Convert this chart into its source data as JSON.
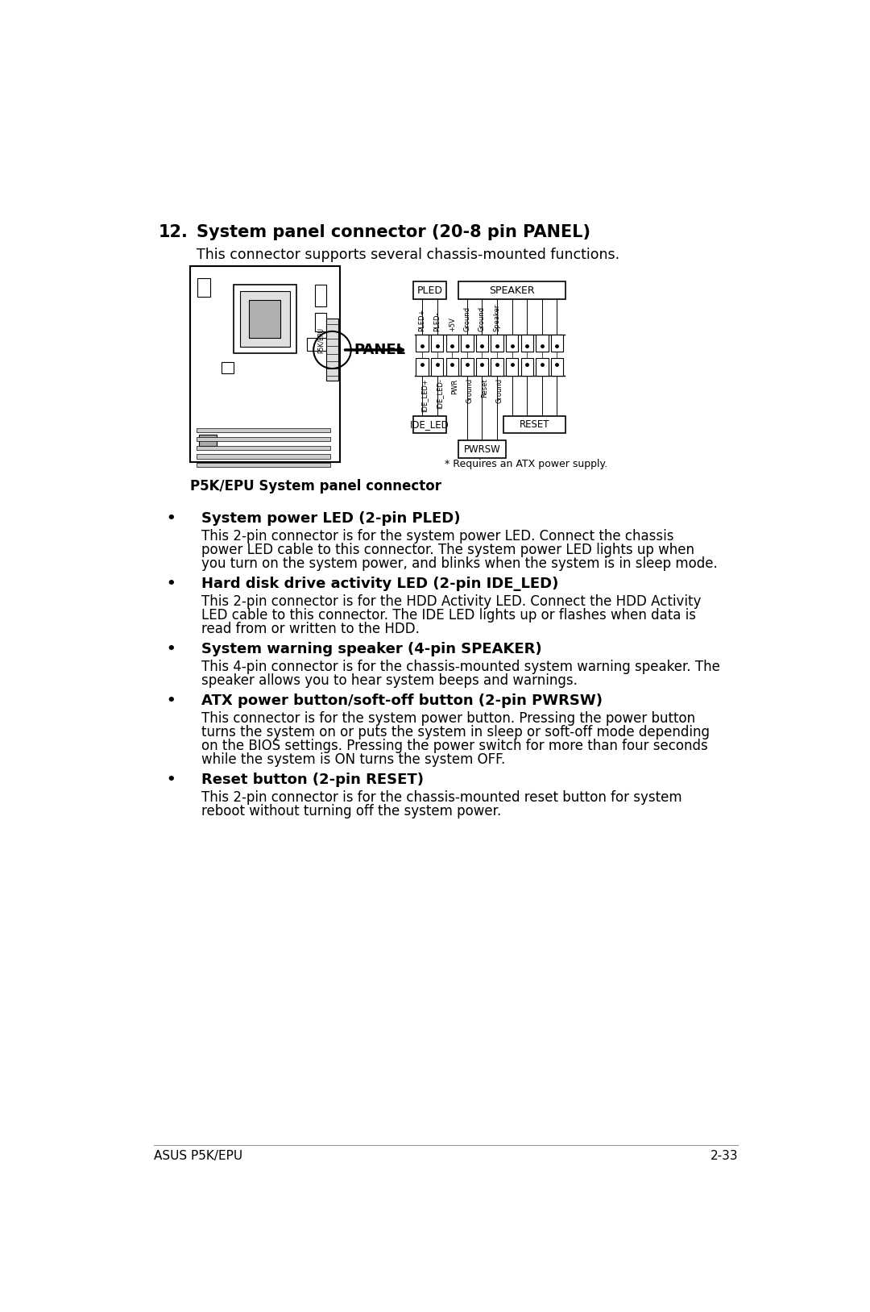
{
  "title_number": "12.",
  "title_text": "System panel connector (20-8 pin PANEL)",
  "subtitle": "This connector supports several chassis-mounted functions.",
  "figure_caption": "P5K/EPU System panel connector",
  "atx_note": "* Requires an ATX power supply.",
  "panel_label": "PANEL",
  "pin_labels_top": [
    "PLED+",
    "PLED-",
    "+5V",
    "Ground",
    "Ground",
    "Speaker"
  ],
  "pin_labels_bottom": [
    "IDE_LED+",
    "IDE_LED-",
    "PWR",
    "Ground",
    "Reset",
    "Ground"
  ],
  "bullet_items": [
    {
      "header": "System power LED (2-pin PLED)",
      "body": "This 2-pin connector is for the system power LED. Connect the chassis\npower LED cable to this connector. The system power LED lights up when\nyou turn on the system power, and blinks when the system is in sleep mode."
    },
    {
      "header": "Hard disk drive activity LED (2-pin IDE_LED)",
      "body": "This 2-pin connector is for the HDD Activity LED. Connect the HDD Activity\nLED cable to this connector. The IDE LED lights up or flashes when data is\nread from or written to the HDD."
    },
    {
      "header": "System warning speaker (4-pin SPEAKER)",
      "body": "This 4-pin connector is for the chassis-mounted system warning speaker. The\nspeaker allows you to hear system beeps and warnings."
    },
    {
      "header": "ATX power button/soft-off button (2-pin PWRSW)",
      "body": "This connector is for the system power button. Pressing the power button\nturns the system on or puts the system in sleep or soft-off mode depending\non the BIOS settings. Pressing the power switch for more than four seconds\nwhile the system is ON turns the system OFF."
    },
    {
      "header": "Reset button (2-pin RESET)",
      "body": "This 2-pin connector is for the chassis-mounted reset button for system\nreboot without turning off the system power."
    }
  ],
  "footer_left": "ASUS P5K/EPU",
  "footer_right": "2-33",
  "bg_color": "#ffffff",
  "text_color": "#000000"
}
